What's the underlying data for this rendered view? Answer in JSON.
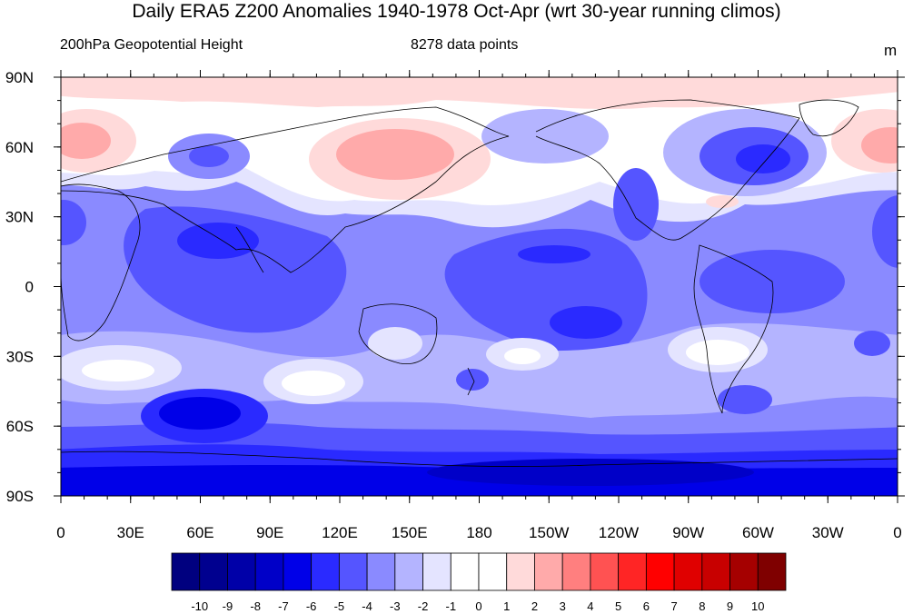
{
  "title": "Daily ERA5 Z200 Anomalies 1940-1978 Oct-Apr (wrt 30-year running climos)",
  "left_subtitle": "200hPa Geopotential Height",
  "center_subtitle": "8278 data points",
  "units": "m",
  "colors": {
    "-10": "#00007f",
    "-9": "#00008f",
    "-8": "#0000a8",
    "-7": "#0000c8",
    "-6": "#0000e8",
    "-5": "#2a2aff",
    "-4": "#5555ff",
    "-3": "#8a8aff",
    "-2": "#b4b4ff",
    "-1": "#e4e4ff",
    "0": "#ffffff",
    "1": "#ffdada",
    "2": "#ffaaaa",
    "3": "#ff7f7f",
    "4": "#ff5252",
    "5": "#ff2525",
    "6": "#ff0000",
    "7": "#e00000",
    "8": "#c80000",
    "9": "#a50000",
    "10": "#7f0000"
  },
  "map": {
    "projection": "cylindrical equidistant",
    "lon_range": [
      0,
      360
    ],
    "lat_range": [
      -90,
      90
    ],
    "lat_labels": [
      "90N",
      "60N",
      "30N",
      "0",
      "30S",
      "60S",
      "90S"
    ],
    "lon_labels": [
      "0",
      "30E",
      "60E",
      "90E",
      "120E",
      "150E",
      "180",
      "150W",
      "120W",
      "90W",
      "60W",
      "30W",
      "0"
    ]
  },
  "colorbar": {
    "labels": [
      "-10",
      "-9",
      "-8",
      "-7",
      "-6",
      "-5",
      "-4",
      "-3",
      "-2",
      "-1",
      "0",
      "1",
      "2",
      "3",
      "4",
      "5",
      "6",
      "7",
      "8",
      "9",
      "10"
    ],
    "box_colors": [
      "#00007f",
      "#00008f",
      "#0000a8",
      "#0000c8",
      "#0000e8",
      "#2a2aff",
      "#5555ff",
      "#8a8aff",
      "#b4b4ff",
      "#e4e4ff",
      "#ffffff",
      "#ffffff",
      "#ffdada",
      "#ffaaaa",
      "#ff7f7f",
      "#ff5252",
      "#ff2525",
      "#ff0000",
      "#e00000",
      "#c80000",
      "#a50000",
      "#7f0000"
    ]
  }
}
